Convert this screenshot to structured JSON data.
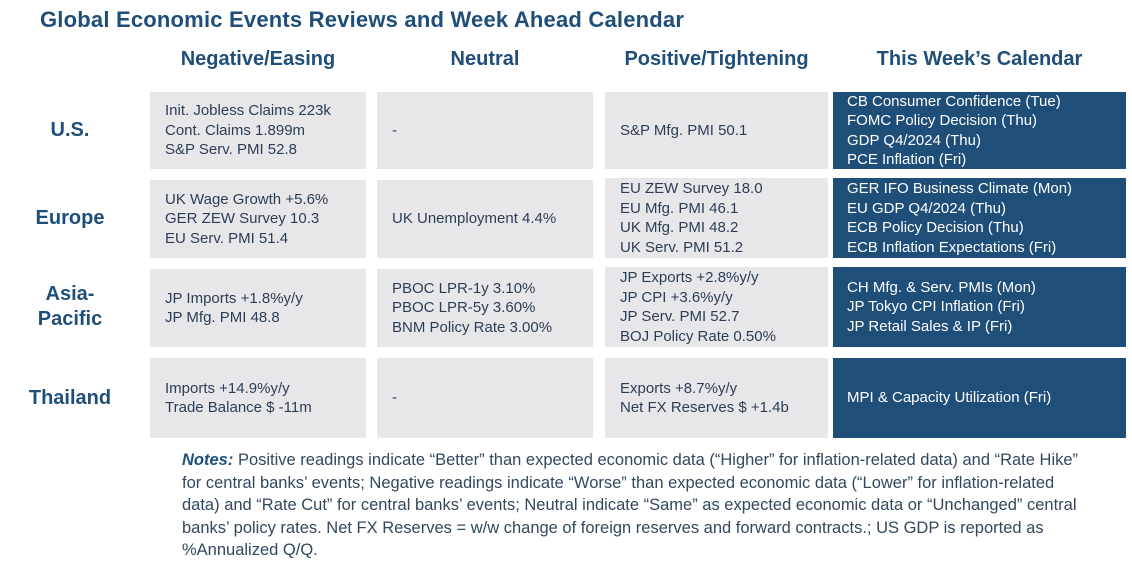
{
  "title": "Global Economic Events Reviews and Week Ahead Calendar",
  "columns": [
    "Negative/Easing",
    "Neutral",
    "Positive/Tightening",
    "This Week’s Calendar"
  ],
  "rows": [
    {
      "region": "U.S.",
      "negative": [
        "Init. Jobless Claims 223k",
        "Cont. Claims 1.899m",
        "S&P Serv. PMI 52.8"
      ],
      "neutral": [
        "-"
      ],
      "positive": [
        "S&P Mfg. PMI 50.1"
      ],
      "calendar": [
        "CB Consumer Confidence (Tue)",
        "FOMC Policy Decision (Thu)",
        "GDP Q4/2024 (Thu)",
        "PCE Inflation (Fri)"
      ]
    },
    {
      "region": "Europe",
      "negative": [
        "UK Wage Growth +5.6%",
        "GER ZEW Survey 10.3",
        "EU Serv. PMI 51.4"
      ],
      "neutral": [
        "UK Unemployment 4.4%"
      ],
      "positive": [
        "EU ZEW Survey 18.0",
        "EU Mfg. PMI 46.1",
        "UK Mfg. PMI 48.2",
        "UK Serv. PMI 51.2"
      ],
      "calendar": [
        "GER IFO Business Climate (Mon)",
        "EU GDP Q4/2024 (Thu)",
        "ECB Policy Decision (Thu)",
        "ECB Inflation Expectations (Fri)"
      ]
    },
    {
      "region": "Asia-Pacific",
      "region_lines": [
        "Asia-",
        "Pacific"
      ],
      "negative": [
        "JP Imports +1.8%y/y",
        "JP Mfg. PMI 48.8"
      ],
      "neutral": [
        "PBOC LPR-1y 3.10%",
        "PBOC LPR-5y 3.60%",
        "BNM Policy Rate 3.00%"
      ],
      "positive": [
        "JP Exports +2.8%y/y",
        "JP CPI +3.6%y/y",
        "JP Serv. PMI 52.7",
        "BOJ Policy Rate 0.50%"
      ],
      "calendar": [
        "CH Mfg. & Serv. PMIs (Mon)",
        "JP Tokyo CPI Inflation (Fri)",
        "JP Retail Sales & IP (Fri)"
      ]
    },
    {
      "region": "Thailand",
      "negative": [
        "Imports +14.9%y/y",
        "Trade Balance $ -11m"
      ],
      "neutral": [
        "-"
      ],
      "positive": [
        "Exports +8.7%y/y",
        "Net FX Reserves $ +1.4b"
      ],
      "calendar": [
        "MPI & Capacity Utilization (Fri)"
      ]
    }
  ],
  "notes": {
    "label": "Notes:",
    "text": "Positive readings indicate “Better” than expected economic data (“Higher” for inflation-related data) and “Rate Hike” for central banks’ events; Negative readings indicate “Worse” than expected economic data (“Lower” for inflation-related data) and “Rate Cut” for central banks’ events; Neutral indicate “Same” as expected economic data or “Unchanged” central banks’ policy rates. Net FX Reserves = w/w change of foreign reserves and forward contracts.; US GDP is reported as %Annualized Q/Q."
  },
  "colors": {
    "header_blue": "#1f4e79",
    "cell_gray": "#e7e7e9",
    "calendar_blue": "#1f4e79"
  }
}
